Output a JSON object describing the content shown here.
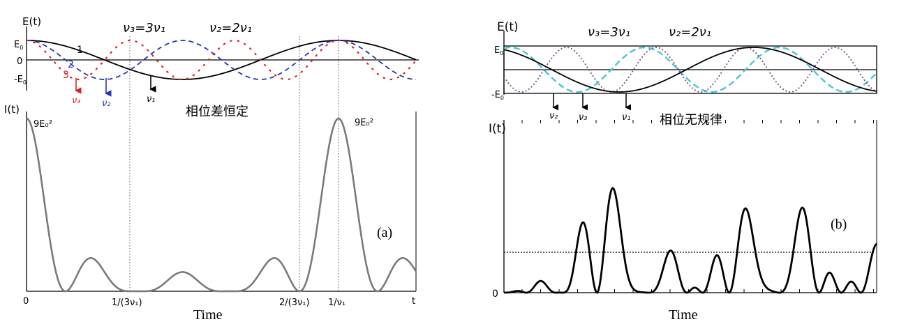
{
  "panel_a": {
    "e_axis_label": "E(t)",
    "i_axis_label": "I(t)",
    "e0_label": "E",
    "e0_sub": "0",
    "zero_label": "0",
    "neg_e0_label": "-E",
    "neg_e0_sub": "0",
    "v3_relation": "ν₃=3ν₁",
    "v2_relation": "ν₂=2ν₁",
    "curve_num_1": "1",
    "curve_num_2": "2",
    "curve_num_3": "3",
    "arrow_v3": "ν₃",
    "arrow_v2": "ν₂",
    "arrow_v1": "ν₁",
    "chinese_caption": "相位差恒定",
    "peak_label_left": "9E₀²",
    "peak_label_right": "9E₀²",
    "x_origin": "0",
    "x_tick_1": "1/(3ν₁)",
    "x_tick_2": "2/(3ν₁)",
    "x_tick_3": "1/ν₁",
    "x_end": "t",
    "xlabel": "Time",
    "panel_label": "(a)"
  },
  "panel_b": {
    "e_axis_label": "E(t)",
    "i_axis_label": "I(t)",
    "e0_label": "E",
    "e0_sub": "0",
    "neg_e0_label": "-E",
    "neg_e0_sub": "0",
    "v3_relation": "ν₃=3ν₁",
    "v2_relation": "ν₂=2ν₁",
    "arrow_v2": "ν₂",
    "arrow_v3": "ν₃",
    "arrow_v1": "ν₁",
    "chinese_caption": "相位无规律",
    "zero_label": "0",
    "xlabel": "Time",
    "panel_label": "(b)"
  },
  "colors": {
    "nu1": "#000000",
    "nu2_a": "#2233bb",
    "nu3_a": "#dd2222",
    "nu2_b": "#44c8d0",
    "nu3_b": "#7a4a8a",
    "intensity_a": "#7a7a7a",
    "intensity_b": "#000000"
  },
  "chart_data": [
    {
      "type": "line",
      "panel": "(a)",
      "xlabel": "Time",
      "x_ticks": [
        "0",
        "1/(3ν₁)",
        "2/(3ν₁)",
        "1/ν₁"
      ],
      "x_tick_values": [
        0,
        0.3333,
        0.6667,
        1.0
      ],
      "series": [
        {
          "name": "1",
          "label": "ν₁",
          "equation": "cos(2πt)"
        },
        {
          "name": "2",
          "label": "ν₂",
          "equation": "cos(4πt)"
        },
        {
          "name": "3",
          "label": "ν₃",
          "equation": "cos(6πt)"
        },
        {
          "label": "I(t)",
          "equation": "(E₁+E₂+E₃)²",
          "peak": "9E₀²"
        }
      ],
      "x_range": [
        0,
        1.25
      ],
      "e_ylim": [
        -1,
        1
      ],
      "i_ylim": [
        0,
        9
      ],
      "i_peaks_at": [
        0,
        1.0
      ]
    },
    {
      "type": "line",
      "panel": "(b)",
      "xlabel": "Time",
      "series": [
        {
          "label": "ν₁"
        },
        {
          "label": "ν₂"
        },
        {
          "label": "ν₃"
        },
        {
          "label": "I(t)"
        }
      ],
      "i_ylim_origin": "0",
      "mean_line": "dotted horizontal"
    }
  ]
}
